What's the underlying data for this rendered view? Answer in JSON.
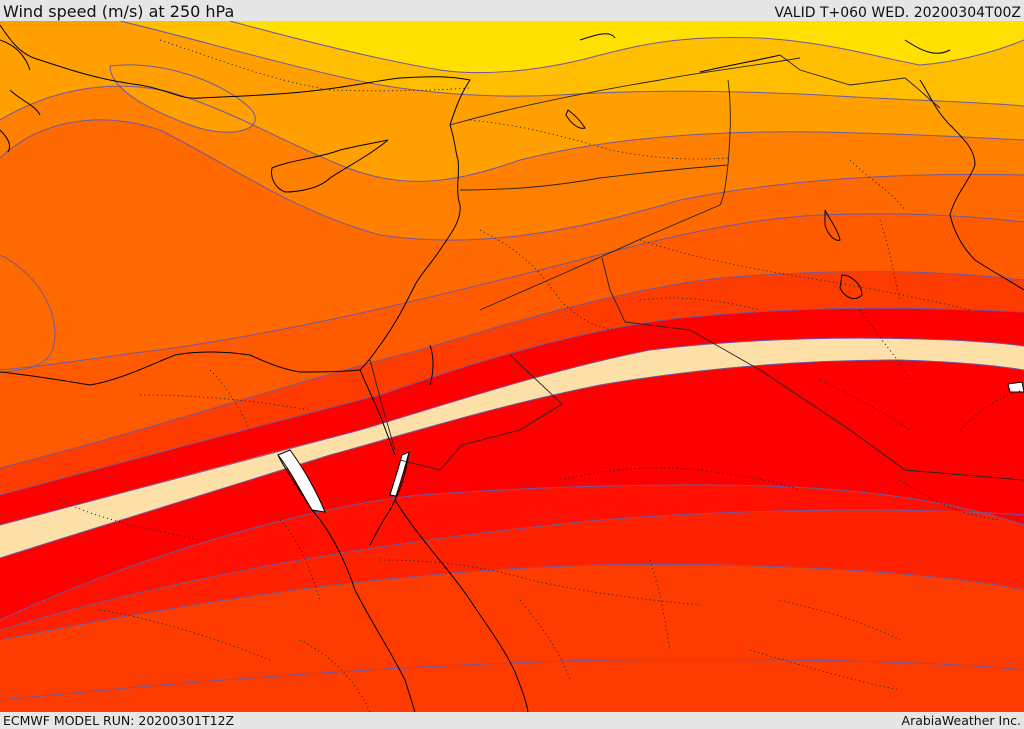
{
  "header": {
    "title": "Wind speed (m/s) at 250 hPa",
    "valid": "VALID T+060 WED. 20200304T00Z"
  },
  "footer": {
    "model_run": "ECMWF MODEL RUN: 20200301T12Z",
    "credit": "ArabiaWeather Inc."
  },
  "map": {
    "colors": {
      "yellow": "#FFE000",
      "light_orange": "#FFC000",
      "orange": "#FFA000",
      "dark_orange": "#FF8000",
      "orange_red": "#FF6000",
      "red_orange": "#FF3C00",
      "red": "#FF0000",
      "jet_core": "#FDE0A8",
      "contour": "#7058A0",
      "coast": "#000000"
    }
  }
}
